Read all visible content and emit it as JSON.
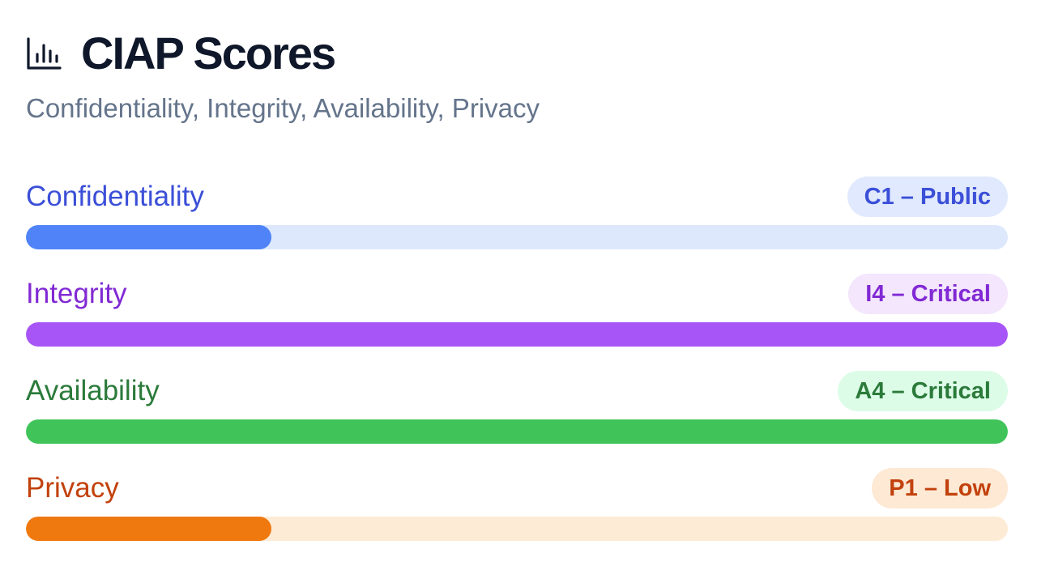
{
  "header": {
    "title": "CIAP Scores",
    "subtitle": "Confidentiality, Integrity, Availability, Privacy",
    "icon": "bar-chart-icon"
  },
  "scores": [
    {
      "key": "confidentiality",
      "label": "Confidentiality",
      "badge": "C1 – Public",
      "level": 1,
      "max_level": 4,
      "colors": {
        "text": "#3b4fd8",
        "badge_bg": "#e0e9fd",
        "track": "#dde8fd",
        "fill": "#4f83f7"
      }
    },
    {
      "key": "integrity",
      "label": "Integrity",
      "badge": "I4 – Critical",
      "level": 4,
      "max_level": 4,
      "colors": {
        "text": "#8129d4",
        "badge_bg": "#f3e6fd",
        "track": "#f1e4fe",
        "fill": "#a855f7"
      }
    },
    {
      "key": "availability",
      "label": "Availability",
      "badge": "A4 – Critical",
      "level": 4,
      "max_level": 4,
      "colors": {
        "text": "#2b7a3a",
        "badge_bg": "#dcfce7",
        "track": "#dcfce7",
        "fill": "#40c45a"
      }
    },
    {
      "key": "privacy",
      "label": "Privacy",
      "badge": "P1 – Low",
      "level": 1,
      "max_level": 4,
      "colors": {
        "text": "#c2410c",
        "badge_bg": "#fde9d4",
        "track": "#fdebd5",
        "fill": "#f0790f"
      }
    }
  ]
}
